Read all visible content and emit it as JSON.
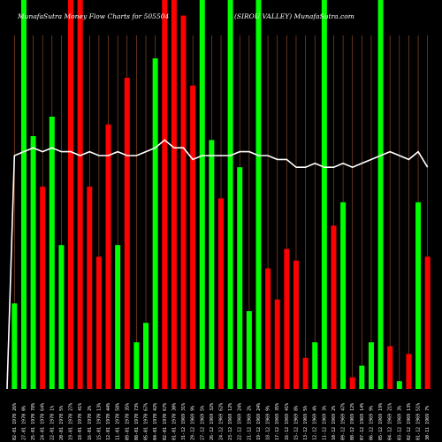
{
  "header": {
    "left": "MunafaSutra  Money  Flow  Charts for 505504",
    "right": "(SIROU VALLEY) MunafaSutra.com"
  },
  "chart_data": {
    "type": "bar",
    "title": "MunafaSutra  Money  Flow  Charts for 505504",
    "subtitle": "(SIROU VALLEY) MunafaSutra.com",
    "ylim": [
      0,
      100
    ],
    "categories": [
      "02-01 1970 26%",
      "27-01 1970 0%",
      "25-01 1970 78%",
      "24-01 1970 64%",
      "22-01 1970 1%",
      "20-01 1970 5%",
      "19-01 1970 27%",
      "18-01 1970 41%",
      "16-01 1970 2%",
      "15-01 1970 13%",
      "12-01 1970 44%",
      "11-01 1970 58%",
      "09-01 1970 35%",
      "08-01 1970 73%",
      "05-01 1970 67%",
      "04-01 1970 42%",
      "02-01 1970 67%",
      "01-01 1970 30%",
      "31-12 1969 31%",
      "29-12 1969 9%",
      "27-12 1969 5%",
      "26-12 1969 32%",
      "24-12 1969 62%",
      "23-12 1969 12%",
      "22-12 1969 24%",
      "21-12 1969 2%",
      "19-12 1969 24%",
      "18-12 1969 9%",
      "17-12 1969 35%",
      "16-12 1969 41%",
      "15-12 1969 8%",
      "13-12 1969 5%",
      "12-12 1969 4%",
      "11-12 1969 3%",
      "10-12 1969 2%",
      "09-12 1969 47%",
      "08-12 1969 12%",
      "07-12 1969 14%",
      "06-12 1969 9%",
      "05-12 1969 19%",
      "04-12 1969 21%",
      "03-12 1969 3%",
      "02-12 1969 13%",
      "01-12 1969 51%",
      "30-11 1969 7%"
    ],
    "series": [
      {
        "values": [
          22,
          100,
          65,
          52,
          70,
          37,
          100,
          100,
          52,
          34,
          68,
          37,
          80,
          12,
          17,
          85,
          100,
          100,
          96,
          78,
          100,
          64,
          49,
          100,
          57,
          20,
          100,
          31,
          23,
          36,
          33,
          8,
          12,
          100,
          42,
          48,
          3,
          6,
          12,
          100,
          11,
          2,
          9,
          48,
          34
        ],
        "colors": [
          "g",
          "g",
          "g",
          "r",
          "g",
          "g",
          "r",
          "r",
          "r",
          "r",
          "r",
          "g",
          "r",
          "g",
          "g",
          "g",
          "r",
          "r",
          "r",
          "r",
          "g",
          "g",
          "r",
          "g",
          "g",
          "g",
          "g",
          "r",
          "r",
          "r",
          "r",
          "r",
          "g",
          "g",
          "r",
          "g",
          "r",
          "g",
          "g",
          "g",
          "r",
          "g",
          "r",
          "g",
          "r"
        ]
      },
      {
        "values": [
          60,
          61,
          62,
          61,
          62,
          61,
          61,
          60,
          61,
          60,
          60,
          61,
          60,
          60,
          61,
          62,
          64,
          62,
          62,
          59,
          60,
          60,
          60,
          60,
          61,
          61,
          60,
          60,
          59,
          59,
          57,
          57,
          58,
          57,
          57,
          58,
          57,
          58,
          59,
          60,
          61,
          60,
          59,
          61,
          57
        ]
      }
    ],
    "grid": true,
    "colors": {
      "up": "#00ff00",
      "down": "#ff0000",
      "grid": "#a0522d",
      "line": "#ffffff"
    }
  }
}
